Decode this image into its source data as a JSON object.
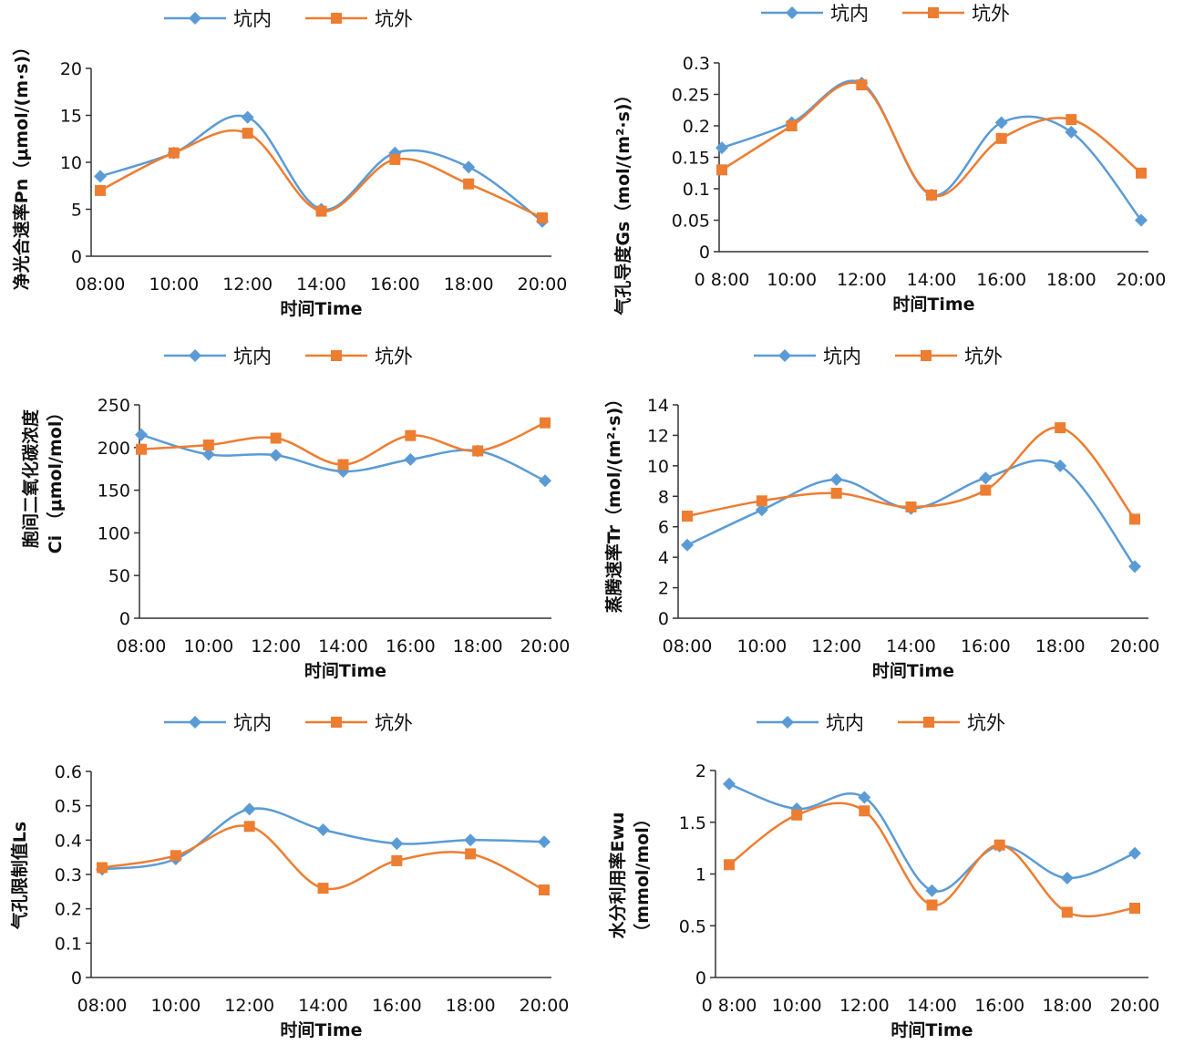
{
  "chart_data": [
    {
      "type": "line",
      "xlabel": "时间Time",
      "ylabel": "净光合速率Pn（μmol/(m·s)）",
      "categories": [
        "08:00",
        "10:00",
        "12:00",
        "14:00",
        "16:00",
        "18:00",
        "20:00"
      ],
      "yticks": [
        "0",
        "5",
        "10",
        "15",
        "20"
      ],
      "ylim": [
        0,
        20
      ],
      "series": [
        {
          "name": "坑内",
          "color": "#5B9BD5",
          "marker": "diamond",
          "values": [
            8.5,
            11.0,
            14.8,
            5.0,
            11.0,
            9.5,
            3.7
          ]
        },
        {
          "name": "坑外",
          "color": "#ED7D31",
          "marker": "square",
          "values": [
            7.0,
            11.0,
            13.1,
            4.8,
            10.3,
            7.7,
            4.1
          ]
        }
      ],
      "legend_position": "top"
    },
    {
      "type": "line",
      "xlabel": "时间Time",
      "ylabel": "气孔导度Gs（mol/(m²·s)）",
      "categories": [
        "0 8:00",
        "10:00",
        "12:00",
        "14:00",
        "16:00",
        "18:00",
        "20:00"
      ],
      "yticks": [
        "0",
        "0.05",
        "0.1",
        "0.15",
        "0.2",
        "0.25",
        "0.3"
      ],
      "ylim": [
        0,
        0.3
      ],
      "series": [
        {
          "name": "坑内",
          "color": "#5B9BD5",
          "marker": "diamond",
          "values": [
            0.165,
            0.205,
            0.268,
            0.09,
            0.205,
            0.19,
            0.05
          ]
        },
        {
          "name": "坑外",
          "color": "#ED7D31",
          "marker": "square",
          "values": [
            0.13,
            0.2,
            0.265,
            0.09,
            0.18,
            0.21,
            0.125
          ]
        }
      ],
      "legend_position": "top"
    },
    {
      "type": "line",
      "xlabel": "时间Time",
      "ylabel": "胞间二氧化碳浓度",
      "ylabel2": "Ci （μmol/mol）",
      "categories": [
        "08:00",
        "10:00",
        "12:00",
        "14:00",
        "16:00",
        "18:00",
        "20:00"
      ],
      "yticks": [
        "0",
        "50",
        "100",
        "150",
        "200",
        "250"
      ],
      "ylim": [
        0,
        250
      ],
      "series": [
        {
          "name": "坑内",
          "color": "#5B9BD5",
          "marker": "diamond",
          "values": [
            215,
            192,
            191,
            172,
            186,
            196,
            161
          ]
        },
        {
          "name": "坑外",
          "color": "#ED7D31",
          "marker": "square",
          "values": [
            198,
            203,
            211,
            180,
            214,
            196,
            229
          ]
        }
      ],
      "legend_position": "top"
    },
    {
      "type": "line",
      "xlabel": "时间Time",
      "ylabel": "蒸腾速率Tr（mol/(m²·s)）",
      "categories": [
        "08:00",
        "10:00",
        "12:00",
        "14:00",
        "16:00",
        "18:00",
        "20:00"
      ],
      "yticks": [
        "0",
        "2",
        "4",
        "6",
        "8",
        "10",
        "12",
        "14"
      ],
      "ylim": [
        0,
        14
      ],
      "series": [
        {
          "name": "坑内",
          "color": "#5B9BD5",
          "marker": "diamond",
          "values": [
            4.8,
            7.1,
            9.1,
            7.2,
            9.2,
            10.0,
            3.4
          ]
        },
        {
          "name": "坑外",
          "color": "#ED7D31",
          "marker": "square",
          "values": [
            6.7,
            7.7,
            8.2,
            7.3,
            8.4,
            12.5,
            6.5
          ]
        }
      ],
      "legend_position": "top"
    },
    {
      "type": "line",
      "xlabel": "时间Time",
      "ylabel": "气孔限制值Ls",
      "categories": [
        "08:00",
        "10:00",
        "12:00",
        "14:00",
        "16:00",
        "18:00",
        "20:00"
      ],
      "yticks": [
        "0",
        "0.1",
        "0.2",
        "0.3",
        "0.4",
        "0.5",
        "0.6"
      ],
      "ylim": [
        0,
        0.6
      ],
      "series": [
        {
          "name": "坑内",
          "color": "#5B9BD5",
          "marker": "diamond",
          "values": [
            0.315,
            0.345,
            0.49,
            0.43,
            0.39,
            0.4,
            0.395
          ]
        },
        {
          "name": "坑外",
          "color": "#ED7D31",
          "marker": "square",
          "values": [
            0.32,
            0.355,
            0.44,
            0.26,
            0.34,
            0.36,
            0.255
          ]
        }
      ],
      "legend_position": "top"
    },
    {
      "type": "line",
      "xlabel": "时间Time",
      "ylabel": "水分利用率Ewu",
      "ylabel2": "（mmol/mol）",
      "categories": [
        "0 8:00",
        "10:00",
        "12:00",
        "14:00",
        "16:00",
        "18:00",
        "20:00"
      ],
      "yticks": [
        "0",
        "0.5",
        "1",
        "1.5",
        "2"
      ],
      "ylim": [
        0,
        2
      ],
      "series": [
        {
          "name": "坑内",
          "color": "#5B9BD5",
          "marker": "diamond",
          "values": [
            1.87,
            1.63,
            1.74,
            0.84,
            1.27,
            0.96,
            1.2
          ]
        },
        {
          "name": "坑外",
          "color": "#ED7D31",
          "marker": "square",
          "values": [
            1.09,
            1.57,
            1.61,
            0.7,
            1.28,
            0.63,
            0.67
          ]
        }
      ],
      "legend_position": "top"
    }
  ]
}
